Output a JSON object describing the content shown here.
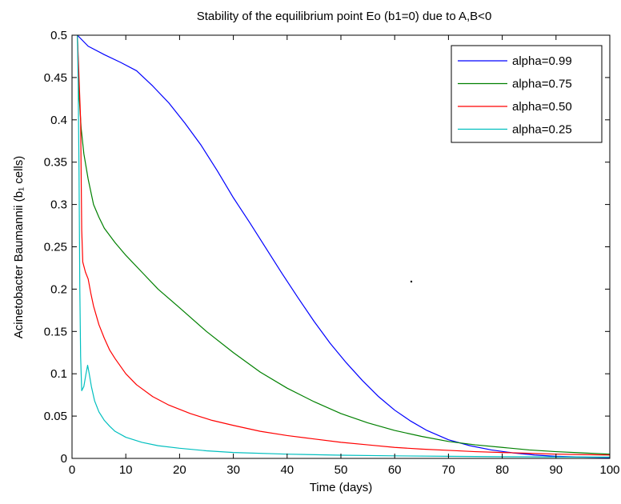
{
  "chart_data": {
    "type": "line",
    "title": "Stability of the equilibrium point Eo (b1=0) due to A,B<0",
    "xlabel": "Time (days)",
    "ylabel": "Acinetobacter Baumannii  (b₁ cells)",
    "xlim": [
      0,
      100
    ],
    "ylim": [
      0,
      0.5
    ],
    "xticks": [
      0,
      10,
      20,
      30,
      40,
      50,
      60,
      70,
      80,
      90,
      100
    ],
    "yticks": [
      0,
      0.05,
      0.1,
      0.15,
      0.2,
      0.25,
      0.3,
      0.35,
      0.4,
      0.45,
      0.5
    ],
    "xtick_labels": [
      "0",
      "10",
      "20",
      "30",
      "40",
      "50",
      "60",
      "70",
      "80",
      "90",
      "100"
    ],
    "ytick_labels": [
      "0",
      "0.05",
      "0.1",
      "0.15",
      "0.2",
      "0.25",
      "0.3",
      "0.35",
      "0.4",
      "0.45",
      "0.5"
    ],
    "legend_position": "top-right",
    "grid": false,
    "series": [
      {
        "name": "alpha=0.99",
        "color": "#0000ff",
        "points": [
          [
            1,
            0.5
          ],
          [
            3,
            0.487
          ],
          [
            6,
            0.477
          ],
          [
            9,
            0.468
          ],
          [
            12,
            0.458
          ],
          [
            15,
            0.44
          ],
          [
            18,
            0.42
          ],
          [
            21,
            0.396
          ],
          [
            24,
            0.37
          ],
          [
            27,
            0.34
          ],
          [
            30,
            0.308
          ],
          [
            33,
            0.279
          ],
          [
            36,
            0.249
          ],
          [
            39,
            0.219
          ],
          [
            42,
            0.19
          ],
          [
            45,
            0.162
          ],
          [
            48,
            0.136
          ],
          [
            51,
            0.113
          ],
          [
            54,
            0.092
          ],
          [
            57,
            0.073
          ],
          [
            60,
            0.057
          ],
          [
            63,
            0.044
          ],
          [
            66,
            0.033
          ],
          [
            70,
            0.022
          ],
          [
            74,
            0.015
          ],
          [
            78,
            0.01
          ],
          [
            82,
            0.0065
          ],
          [
            86,
            0.004
          ],
          [
            90,
            0.0025
          ],
          [
            95,
            0.0015
          ],
          [
            100,
            0.001
          ]
        ]
      },
      {
        "name": "alpha=0.75",
        "color": "#008000",
        "points": [
          [
            1,
            0.5
          ],
          [
            1.3,
            0.43
          ],
          [
            1.7,
            0.39
          ],
          [
            2.2,
            0.36
          ],
          [
            3,
            0.33
          ],
          [
            4,
            0.3
          ],
          [
            5,
            0.285
          ],
          [
            6,
            0.272
          ],
          [
            8,
            0.255
          ],
          [
            10,
            0.24
          ],
          [
            13,
            0.22
          ],
          [
            16,
            0.2
          ],
          [
            20,
            0.178
          ],
          [
            25,
            0.15
          ],
          [
            30,
            0.125
          ],
          [
            35,
            0.102
          ],
          [
            40,
            0.083
          ],
          [
            45,
            0.067
          ],
          [
            50,
            0.053
          ],
          [
            55,
            0.042
          ],
          [
            60,
            0.033
          ],
          [
            65,
            0.026
          ],
          [
            70,
            0.02
          ],
          [
            75,
            0.016
          ],
          [
            80,
            0.013
          ],
          [
            85,
            0.01
          ],
          [
            90,
            0.008
          ],
          [
            95,
            0.0065
          ],
          [
            100,
            0.005
          ]
        ]
      },
      {
        "name": "alpha=0.50",
        "color": "#ff0000",
        "points": [
          [
            1,
            0.5
          ],
          [
            1.3,
            0.45
          ],
          [
            1.6,
            0.4
          ],
          [
            1.8,
            0.27
          ],
          [
            2,
            0.232
          ],
          [
            2.5,
            0.22
          ],
          [
            3,
            0.212
          ],
          [
            3.5,
            0.195
          ],
          [
            4,
            0.18
          ],
          [
            5,
            0.158
          ],
          [
            6,
            0.142
          ],
          [
            7,
            0.128
          ],
          [
            8,
            0.118
          ],
          [
            10,
            0.1
          ],
          [
            12,
            0.087
          ],
          [
            15,
            0.073
          ],
          [
            18,
            0.063
          ],
          [
            22,
            0.053
          ],
          [
            26,
            0.045
          ],
          [
            30,
            0.039
          ],
          [
            35,
            0.032
          ],
          [
            40,
            0.027
          ],
          [
            45,
            0.023
          ],
          [
            50,
            0.019
          ],
          [
            55,
            0.016
          ],
          [
            60,
            0.013
          ],
          [
            65,
            0.011
          ],
          [
            70,
            0.0095
          ],
          [
            75,
            0.008
          ],
          [
            80,
            0.007
          ],
          [
            85,
            0.006
          ],
          [
            90,
            0.005
          ],
          [
            95,
            0.0045
          ],
          [
            100,
            0.004
          ]
        ]
      },
      {
        "name": "alpha=0.25",
        "color": "#00bfbf",
        "points": [
          [
            1,
            0.5
          ],
          [
            1.15,
            0.44
          ],
          [
            1.3,
            0.34
          ],
          [
            1.45,
            0.2
          ],
          [
            1.6,
            0.12
          ],
          [
            1.8,
            0.08
          ],
          [
            2.2,
            0.085
          ],
          [
            2.6,
            0.1
          ],
          [
            2.9,
            0.11
          ],
          [
            3.2,
            0.1
          ],
          [
            3.6,
            0.085
          ],
          [
            4.2,
            0.068
          ],
          [
            5,
            0.055
          ],
          [
            6,
            0.045
          ],
          [
            7,
            0.038
          ],
          [
            8,
            0.032
          ],
          [
            10,
            0.025
          ],
          [
            13,
            0.019
          ],
          [
            16,
            0.015
          ],
          [
            20,
            0.012
          ],
          [
            25,
            0.009
          ],
          [
            30,
            0.007
          ],
          [
            40,
            0.005
          ],
          [
            50,
            0.0038
          ],
          [
            60,
            0.003
          ],
          [
            70,
            0.0025
          ],
          [
            80,
            0.002
          ],
          [
            90,
            0.0018
          ],
          [
            100,
            0.0015
          ]
        ]
      }
    ]
  }
}
